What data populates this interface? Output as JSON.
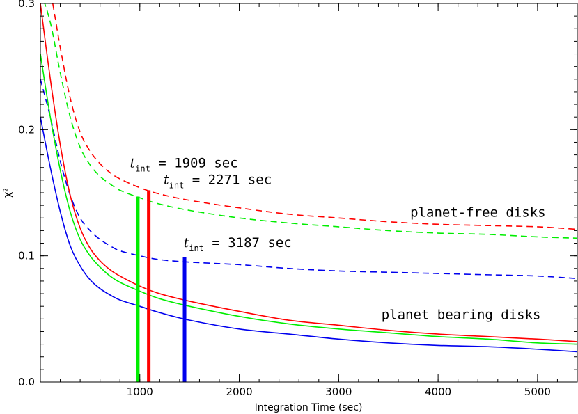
{
  "chart_data": {
    "type": "line",
    "xlabel": "Integration Time (sec)",
    "ylabel": "χ²",
    "xlim": [
      0,
      5400
    ],
    "ylim": [
      0,
      0.3
    ],
    "x_ticks": [
      {
        "value": 1000,
        "label": "1000"
      },
      {
        "value": 2000,
        "label": "2000"
      },
      {
        "value": 3000,
        "label": "3000"
      },
      {
        "value": 4000,
        "label": "4000"
      },
      {
        "value": 5000,
        "label": "5000"
      }
    ],
    "y_ticks": [
      {
        "value": 0.0,
        "label": "0.0"
      },
      {
        "value": 0.1,
        "label": "0.1"
      },
      {
        "value": 0.2,
        "label": "0.2"
      },
      {
        "value": 0.3,
        "label": "0.3"
      }
    ],
    "x_minor_step": 200,
    "y_minor_step": 0.01,
    "series": [
      {
        "group": "planet-free",
        "color": "#ff0000",
        "dash": true,
        "x": [
          0,
          100,
          200,
          300,
          400,
          500,
          600,
          700,
          800,
          1000,
          1200,
          1500,
          2000,
          2500,
          3000,
          3500,
          4000,
          4500,
          5000,
          5400
        ],
        "y": [
          0.34,
          0.31,
          0.265,
          0.225,
          0.198,
          0.183,
          0.173,
          0.166,
          0.161,
          0.154,
          0.149,
          0.144,
          0.138,
          0.133,
          0.13,
          0.127,
          0.125,
          0.124,
          0.123,
          0.121
        ]
      },
      {
        "group": "planet-free",
        "color": "#00ee00",
        "dash": true,
        "x": [
          0,
          100,
          200,
          300,
          400,
          500,
          600,
          700,
          800,
          1000,
          1200,
          1500,
          2000,
          2500,
          3000,
          3500,
          4000,
          4500,
          5000,
          5400
        ],
        "y": [
          0.31,
          0.285,
          0.245,
          0.21,
          0.186,
          0.172,
          0.163,
          0.157,
          0.152,
          0.146,
          0.141,
          0.136,
          0.13,
          0.126,
          0.123,
          0.12,
          0.118,
          0.117,
          0.115,
          0.114
        ]
      },
      {
        "group": "planet-free",
        "color": "#0000ee",
        "dash": true,
        "x": [
          0,
          100,
          200,
          300,
          400,
          500,
          600,
          700,
          800,
          1000,
          1200,
          1500,
          2000,
          2500,
          3000,
          3500,
          4000,
          4500,
          5000,
          5400
        ],
        "y": [
          0.24,
          0.21,
          0.175,
          0.148,
          0.13,
          0.12,
          0.113,
          0.108,
          0.104,
          0.1,
          0.097,
          0.095,
          0.093,
          0.09,
          0.088,
          0.087,
          0.086,
          0.085,
          0.084,
          0.082
        ]
      },
      {
        "group": "planet-bearing",
        "color": "#ff0000",
        "dash": false,
        "x": [
          0,
          100,
          200,
          300,
          400,
          500,
          600,
          700,
          800,
          1000,
          1200,
          1500,
          2000,
          2500,
          3000,
          3500,
          4000,
          4500,
          5000,
          5400
        ],
        "y": [
          0.3,
          0.24,
          0.188,
          0.148,
          0.122,
          0.106,
          0.096,
          0.089,
          0.084,
          0.076,
          0.07,
          0.064,
          0.056,
          0.049,
          0.045,
          0.041,
          0.038,
          0.036,
          0.034,
          0.032
        ]
      },
      {
        "group": "planet-bearing",
        "color": "#00ee00",
        "dash": false,
        "x": [
          0,
          100,
          200,
          300,
          400,
          500,
          600,
          700,
          800,
          1000,
          1200,
          1500,
          2000,
          2500,
          3000,
          3500,
          4000,
          4500,
          5000,
          5400
        ],
        "y": [
          0.26,
          0.21,
          0.168,
          0.135,
          0.113,
          0.1,
          0.091,
          0.084,
          0.079,
          0.072,
          0.066,
          0.06,
          0.052,
          0.046,
          0.042,
          0.039,
          0.036,
          0.034,
          0.031,
          0.03
        ]
      },
      {
        "group": "planet-bearing",
        "color": "#0000ee",
        "dash": false,
        "x": [
          0,
          100,
          200,
          300,
          400,
          500,
          600,
          700,
          800,
          1000,
          1200,
          1500,
          2000,
          2500,
          3000,
          3500,
          4000,
          4500,
          5000,
          5400
        ],
        "y": [
          0.21,
          0.17,
          0.135,
          0.108,
          0.092,
          0.081,
          0.074,
          0.069,
          0.065,
          0.06,
          0.055,
          0.049,
          0.042,
          0.038,
          0.034,
          0.031,
          0.029,
          0.028,
          0.026,
          0.024
        ]
      }
    ],
    "markers": [
      {
        "x": 980,
        "y": 0.147,
        "color": "#00ee00"
      },
      {
        "x": 1090,
        "y": 0.152,
        "color": "#ff0000"
      },
      {
        "x": 1450,
        "y": 0.099,
        "color": "#0000ee"
      }
    ],
    "annotations": [
      {
        "sym": "t",
        "sub": "int",
        "text": " = 1909 sec",
        "x": 900,
        "y": 0.17
      },
      {
        "sym": "t",
        "sub": "int",
        "text": " = 2271 sec",
        "x": 1240,
        "y": 0.157
      },
      {
        "sym": "t",
        "sub": "int",
        "text": " = 3187 sec",
        "x": 1440,
        "y": 0.107
      },
      {
        "text": "planet-free disks",
        "x": 3720,
        "y": 0.131
      },
      {
        "text": "planet bearing disks",
        "x": 3430,
        "y": 0.05
      }
    ]
  }
}
